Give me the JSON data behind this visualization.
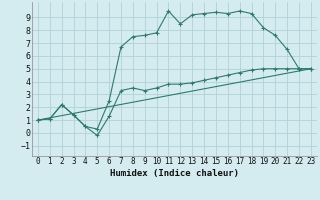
{
  "xlabel": "Humidex (Indice chaleur)",
  "xlim": [
    -0.5,
    23.5
  ],
  "ylim": [
    -1.8,
    10.2
  ],
  "yticks": [
    -1,
    0,
    1,
    2,
    3,
    4,
    5,
    6,
    7,
    8,
    9
  ],
  "xticks": [
    0,
    1,
    2,
    3,
    4,
    5,
    6,
    7,
    8,
    9,
    10,
    11,
    12,
    13,
    14,
    15,
    16,
    17,
    18,
    19,
    20,
    21,
    22,
    23
  ],
  "background_color": "#d4ecef",
  "grid_color": "#b0d0d8",
  "line_color": "#2d7a6c",
  "line1_x": [
    0,
    1,
    2,
    3,
    4,
    5,
    6,
    7,
    8,
    9,
    10,
    11,
    12,
    13,
    14,
    15,
    16,
    17,
    18,
    19,
    20,
    21,
    22,
    23
  ],
  "line1_y": [
    1.0,
    1.1,
    2.2,
    1.4,
    0.5,
    0.3,
    2.5,
    6.7,
    7.5,
    7.6,
    7.8,
    9.5,
    8.5,
    9.2,
    9.3,
    9.4,
    9.3,
    9.5,
    9.3,
    8.2,
    7.6,
    6.5,
    5.0,
    5.0
  ],
  "line2_x": [
    0,
    1,
    2,
    3,
    4,
    5,
    6,
    7,
    8,
    9,
    10,
    11,
    12,
    13,
    14,
    15,
    16,
    17,
    18,
    19,
    20,
    21,
    22,
    23
  ],
  "line2_y": [
    1.0,
    1.1,
    2.2,
    1.4,
    0.5,
    -0.2,
    1.3,
    3.3,
    3.5,
    3.3,
    3.5,
    3.8,
    3.8,
    3.9,
    4.1,
    4.3,
    4.5,
    4.7,
    4.9,
    5.0,
    5.0,
    5.0,
    5.0,
    5.0
  ],
  "line3_x": [
    0,
    23
  ],
  "line3_y": [
    1.0,
    5.0
  ]
}
